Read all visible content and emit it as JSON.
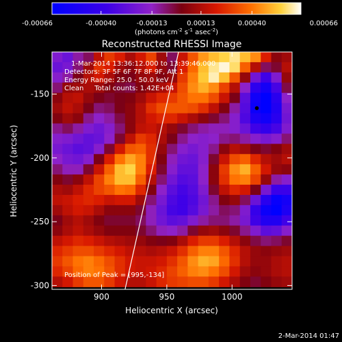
{
  "chart_data": {
    "type": "heatmap",
    "title": "Reconstructed RHESSI Image",
    "xlabel": "Heliocentric X (arcsec)",
    "ylabel": "Heliocentric Y (arcsec)",
    "xlim": [
      862,
      1046
    ],
    "ylim": [
      -303,
      -117
    ],
    "x_ticks": [
      900,
      950,
      1000
    ],
    "y_ticks": [
      -150,
      -200,
      -250,
      -300
    ],
    "colorbar": {
      "ticks": [
        "-0.00066",
        "-0.00040",
        "-0.00013",
        "0.00013",
        "0.00040",
        "0.00066"
      ],
      "tick_values": [
        -0.00066,
        -0.0004,
        -0.00013,
        0.00013,
        0.0004,
        0.00066
      ],
      "range": [
        -0.00066,
        0.00066
      ],
      "units_text": "(photons cm",
      "units_exp1": "-2",
      "units_mid": " s",
      "units_exp2": "-1",
      "units_after": " asec",
      "units_exp3": "-2",
      "units_close": ")"
    },
    "annotations": [
      "1-Mar-2014 13:36:12.000 to 13:39:46.000",
      "Detectors: 3F 5F 6F 7F 8F 9F, Att 1",
      "Energy Range: 25.0 - 50.0 keV",
      "Clean     Total counts: 1.42E+04"
    ],
    "peak_label": "Position of Peak = [995,-134]",
    "limb_line": [
      [
        918,
        -303
      ],
      [
        959,
        -117
      ]
    ],
    "marker": [
      1019,
      -161
    ],
    "grid_x": [
      866,
      874,
      882,
      890,
      898,
      906,
      914,
      922,
      930,
      938,
      946,
      954,
      962,
      970,
      978,
      986,
      994,
      1002,
      1010,
      1018,
      1026,
      1034,
      1042
    ],
    "grid_y": [
      -121,
      -129,
      -137,
      -145,
      -153,
      -161,
      -169,
      -177,
      -185,
      -193,
      -201,
      -209,
      -217,
      -225,
      -233,
      -241,
      -249,
      -257,
      -265,
      -273,
      -281,
      -289,
      -297
    ],
    "z": [
      [
        -0.00018,
        -0.00024,
        -0.0001,
        -4e-05,
        0.00016,
        0.00028,
        0.00022,
        0.00012,
        0.0002,
        0.0003,
        0.0001,
        -4e-05,
        0.00018,
        0.00034,
        0.00046,
        0.00052,
        0.00056,
        0.0006,
        0.00052,
        0.00044,
        0.00022,
        6e-05,
        0.0001
      ],
      [
        -0.00024,
        -0.0002,
        -6e-05,
        0.0001,
        0.00026,
        0.00022,
        0.0001,
        6e-05,
        0.00014,
        0.00022,
        8e-05,
        0.0,
        0.00022,
        0.00038,
        0.00052,
        0.0006,
        0.00064,
        0.00058,
        0.00036,
        0.00014,
        -4e-05,
        0.0,
        0.00014
      ],
      [
        -0.00016,
        -0.0001,
        2e-05,
        0.00014,
        0.0002,
        0.00012,
        4e-05,
        2e-05,
        8e-05,
        0.0001,
        4e-05,
        8e-05,
        0.00028,
        0.00042,
        0.00054,
        0.00062,
        0.00052,
        0.00034,
        8e-05,
        -0.00022,
        -0.00036,
        -0.00018,
        8e-05
      ],
      [
        -6e-05,
        8e-05,
        0.0001,
        0.00012,
        0.0001,
        4e-05,
        0.0,
        -2e-05,
        4e-05,
        8e-05,
        0.00012,
        0.00018,
        0.00032,
        0.00044,
        0.0005,
        0.00044,
        0.0003,
        0.00014,
        -0.00014,
        -0.00044,
        -0.00056,
        -0.00034,
        -2e-05
      ],
      [
        6e-05,
        0.00014,
        0.00016,
        8e-05,
        2e-05,
        0.0,
        2e-05,
        4e-05,
        0.0001,
        0.00018,
        0.00024,
        0.00028,
        0.00034,
        0.0004,
        0.0004,
        0.00032,
        0.00018,
        2e-05,
        -0.00028,
        -0.00058,
        -0.00066,
        -0.00046,
        -0.00014
      ],
      [
        0.0001,
        0.00016,
        0.00012,
        2e-05,
        -6e-05,
        -4e-05,
        2e-05,
        6e-05,
        0.00014,
        0.00026,
        0.00032,
        0.00034,
        0.00034,
        0.00032,
        0.00026,
        0.00016,
        4e-05,
        -0.0001,
        -0.0003,
        -0.0006,
        -0.00066,
        -0.0005,
        -0.0002
      ],
      [
        4e-05,
        0.0001,
        6e-05,
        -8e-05,
        -0.00014,
        -0.0001,
        -2e-05,
        6e-05,
        0.00014,
        0.0002,
        0.00024,
        0.00024,
        0.00018,
        0.00012,
        6e-05,
        0.0,
        -6e-05,
        -0.00016,
        -0.00032,
        -0.00052,
        -0.00058,
        -0.00046,
        -0.00022
      ],
      [
        -8e-05,
        -4e-05,
        -0.0001,
        -0.00018,
        -0.00022,
        -0.00016,
        -6e-05,
        6e-05,
        0.00016,
        0.00018,
        0.00014,
        8e-05,
        0.0,
        -6e-05,
        -0.0001,
        -0.00012,
        -0.00012,
        -0.00016,
        -0.00024,
        -0.00036,
        -0.00042,
        -0.00034,
        -0.00018
      ],
      [
        -0.00016,
        -0.00018,
        -0.00022,
        -0.00026,
        -0.00024,
        -0.00014,
        0.0,
        0.00016,
        0.00028,
        0.00024,
        0.00012,
        2e-05,
        -8e-05,
        -0.00014,
        -0.00016,
        -0.00014,
        -8e-05,
        -6e-05,
        -0.0001,
        -0.00016,
        -0.0002,
        -0.00016,
        -6e-05
      ],
      [
        -0.0002,
        -0.00024,
        -0.00028,
        -0.00026,
        -0.00016,
        0.0,
        0.0002,
        0.00034,
        0.00036,
        0.00026,
        8e-05,
        -6e-05,
        -0.00016,
        -0.0002,
        -0.00016,
        -8e-05,
        6e-05,
        0.00014,
        0.0001,
        2e-05,
        0.0,
        4e-05,
        0.0001
      ],
      [
        -0.00014,
        -0.0002,
        -0.00022,
        -0.00016,
        2e-05,
        0.00022,
        0.0004,
        0.00048,
        0.00042,
        0.00026,
        4e-05,
        -0.00012,
        -0.00022,
        -0.00024,
        -0.00016,
        0.0,
        0.00018,
        0.00032,
        0.00036,
        0.00024,
        0.00014,
        0.0001,
        0.00014
      ],
      [
        -6e-05,
        -0.00012,
        -0.00012,
        0.0,
        0.00018,
        0.00036,
        0.00052,
        0.00056,
        0.00042,
        0.00022,
        0.0,
        -0.00016,
        -0.00026,
        -0.00026,
        -0.00014,
        6e-05,
        0.00028,
        0.00044,
        0.0005,
        0.00036,
        0.0002,
        8e-05,
        6e-05
      ],
      [
        4e-05,
        0.0,
        6e-05,
        0.00016,
        0.0003,
        0.00042,
        0.00052,
        0.00052,
        0.00036,
        0.00014,
        -6e-05,
        -0.00022,
        -0.0003,
        -0.00028,
        -0.00014,
        6e-05,
        0.00026,
        0.0004,
        0.00042,
        0.0003,
        8e-05,
        -0.0001,
        -0.00016
      ],
      [
        0.00012,
        0.0001,
        0.00016,
        0.00024,
        0.0003,
        0.00034,
        0.0004,
        0.00038,
        0.00024,
        4e-05,
        -0.00014,
        -0.00028,
        -0.00034,
        -0.0003,
        -0.00018,
        0.0,
        0.00016,
        0.00024,
        0.0002,
        2e-05,
        -0.0002,
        -0.00038,
        -0.00038
      ],
      [
        0.00016,
        0.00018,
        0.00022,
        0.00024,
        0.00022,
        0.00018,
        0.0002,
        0.0002,
        0.0001,
        -6e-05,
        -0.0002,
        -0.00032,
        -0.00036,
        -0.00032,
        -0.00022,
        -8e-05,
        4e-05,
        8e-05,
        -4e-05,
        -0.00024,
        -0.00046,
        -0.00062,
        -0.00056
      ],
      [
        0.0001,
        0.00016,
        0.0002,
        0.00018,
        0.00012,
        6e-05,
        6e-05,
        6e-05,
        0.0,
        -0.00012,
        -0.00024,
        -0.00034,
        -0.00036,
        -0.0003,
        -0.0002,
        -0.0001,
        -4e-05,
        -6e-05,
        -0.00018,
        -0.0004,
        -0.0006,
        -0.00066,
        -0.00052
      ],
      [
        2e-05,
        0.0001,
        0.00014,
        0.0001,
        4e-05,
        0.0,
        0.0,
        0.0,
        -4e-05,
        -0.00012,
        -0.00022,
        -0.00028,
        -0.00026,
        -0.00018,
        -0.0001,
        -6e-05,
        -6e-05,
        -0.0001,
        -0.0002,
        -0.00036,
        -0.0005,
        -0.0005,
        -0.00036
      ],
      [
        6e-05,
        0.00012,
        0.00016,
        0.00012,
        8e-05,
        4e-05,
        4e-05,
        4e-05,
        0.0,
        -6e-05,
        -0.00012,
        -0.00014,
        -0.0001,
        0.0,
        8e-05,
        0.0001,
        6e-05,
        0.0,
        -8e-05,
        -0.00018,
        -0.00028,
        -0.00026,
        -0.00016
      ],
      [
        0.00016,
        0.0002,
        0.00024,
        0.00022,
        0.00018,
        0.00014,
        0.00012,
        0.0001,
        8e-05,
        4e-05,
        2e-05,
        4e-05,
        0.00012,
        0.00022,
        0.00028,
        0.00028,
        0.00022,
        0.00014,
        6e-05,
        -2e-05,
        -6e-05,
        -4e-05,
        0.0
      ],
      [
        0.00024,
        0.00028,
        0.00032,
        0.00032,
        0.00028,
        0.00024,
        0.0002,
        0.00016,
        0.00014,
        0.00012,
        0.00014,
        0.00018,
        0.00026,
        0.00036,
        0.00042,
        0.00042,
        0.00034,
        0.00024,
        0.00014,
        8e-05,
        6e-05,
        8e-05,
        0.0001
      ],
      [
        0.00028,
        0.00034,
        0.0004,
        0.00042,
        0.00038,
        0.00032,
        0.00026,
        0.0002,
        0.00018,
        0.00018,
        0.0002,
        0.00026,
        0.00034,
        0.00044,
        0.0005,
        0.00048,
        0.00038,
        0.00026,
        0.00014,
        8e-05,
        8e-05,
        0.00012,
        0.00014
      ],
      [
        0.00024,
        0.0003,
        0.00038,
        0.00042,
        0.0004,
        0.00034,
        0.00026,
        0.0002,
        0.00018,
        0.0002,
        0.00024,
        0.0003,
        0.00036,
        0.00042,
        0.00044,
        0.0004,
        0.00032,
        0.0002,
        0.0001,
        6e-05,
        8e-05,
        0.00012,
        0.00014
      ],
      [
        0.00014,
        0.0002,
        0.00028,
        0.00034,
        0.00034,
        0.00028,
        0.0002,
        0.00014,
        0.00014,
        0.00018,
        0.00024,
        0.00028,
        0.0003,
        0.00032,
        0.00032,
        0.00028,
        0.0002,
        0.00012,
        4e-05,
        0.0,
        4e-05,
        8e-05,
        0.0001
      ]
    ]
  },
  "footer_timestamp": "2-Mar-2014 01:47"
}
